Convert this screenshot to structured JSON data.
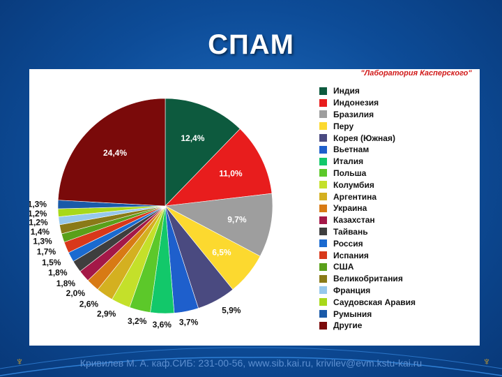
{
  "slide": {
    "title": "СПАМ",
    "footer": "Кривилев М. А. каф.СИБ: 231-00-56, www.sib.kai.ru, krivilev@evm.kstu-kai.ru"
  },
  "chart_data": {
    "type": "pie",
    "title": "",
    "source_note": "\"Лаборатория Касперского\"",
    "legend_position": "right",
    "slices": [
      {
        "name": "Индия",
        "value": 12.4,
        "label": "12,4%",
        "color": "#0d5a3e"
      },
      {
        "name": "Индонезия",
        "value": 11.0,
        "label": "11,0%",
        "color": "#e81d1d"
      },
      {
        "name": "Бразилия",
        "value": 9.7,
        "label": "9,7%",
        "color": "#9e9e9e"
      },
      {
        "name": "Перу",
        "value": 6.5,
        "label": "6,5%",
        "color": "#fcd92f"
      },
      {
        "name": "Корея (Южная)",
        "value": 5.9,
        "label": "5,9%",
        "color": "#4a4a80"
      },
      {
        "name": "Вьетнам",
        "value": 3.7,
        "label": "3,7%",
        "color": "#1e5fcc"
      },
      {
        "name": "Италия",
        "value": 3.6,
        "label": "3,6%",
        "color": "#12c86a"
      },
      {
        "name": "Польша",
        "value": 3.2,
        "label": "3,2%",
        "color": "#5cc82a"
      },
      {
        "name": "Колумбия",
        "value": 2.9,
        "label": "2,9%",
        "color": "#c4e02a"
      },
      {
        "name": "Аргентина",
        "value": 2.6,
        "label": "2,6%",
        "color": "#d4b020"
      },
      {
        "name": "Украина",
        "value": 2.0,
        "label": "2,0%",
        "color": "#d87a14"
      },
      {
        "name": "Казахстан",
        "value": 1.8,
        "label": "1,8%",
        "color": "#a41848"
      },
      {
        "name": "Тайвань",
        "value": 1.8,
        "label": "1,8%",
        "color": "#3e3e3e"
      },
      {
        "name": "Россия",
        "value": 1.5,
        "label": "1,5%",
        "color": "#1a6ad0"
      },
      {
        "name": "Испания",
        "value": 1.7,
        "label": "1,7%",
        "color": "#d8381a"
      },
      {
        "name": "США",
        "value": 1.3,
        "label": "1,3%",
        "color": "#5aa01a"
      },
      {
        "name": "Великобритания",
        "value": 1.4,
        "label": "1,4%",
        "color": "#8a7a18"
      },
      {
        "name": "Франция",
        "value": 1.2,
        "label": "1,2%",
        "color": "#96c8ec"
      },
      {
        "name": "Саудовская Аравия",
        "value": 1.2,
        "label": "1,2%",
        "color": "#a8d81a"
      },
      {
        "name": "Румыния",
        "value": 1.3,
        "label": "1,3%",
        "color": "#1a5aa8"
      },
      {
        "name": "Другие",
        "value": 24.4,
        "label": "24,4%",
        "color": "#7a0a0a"
      }
    ]
  }
}
